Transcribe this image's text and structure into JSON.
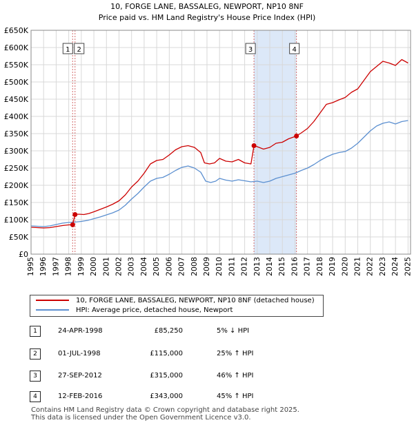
{
  "title_line1": "10, FORGE LANE, BASSALEG, NEWPORT, NP10 8NF",
  "title_line2": "Price paid vs. HM Land Registry's House Price Index (HPI)",
  "chart_data": {
    "type": "line",
    "y_ticks": [
      0,
      50000,
      100000,
      150000,
      200000,
      250000,
      300000,
      350000,
      400000,
      450000,
      500000,
      550000,
      600000,
      650000
    ],
    "y_tick_labels": [
      "£0",
      "£50K",
      "£100K",
      "£150K",
      "£200K",
      "£250K",
      "£300K",
      "£350K",
      "£400K",
      "£450K",
      "£500K",
      "£550K",
      "£600K",
      "£650K"
    ],
    "x_ticks": [
      "1995",
      "1996",
      "1997",
      "1998",
      "1999",
      "2000",
      "2001",
      "2002",
      "2003",
      "2004",
      "2005",
      "2006",
      "2007",
      "2008",
      "2009",
      "2010",
      "2011",
      "2012",
      "2013",
      "2014",
      "2015",
      "2016",
      "2017",
      "2018",
      "2019",
      "2020",
      "2021",
      "2022",
      "2023",
      "2024",
      "2025"
    ],
    "xlim": [
      1995,
      2025.2
    ],
    "ylim": [
      0,
      650000
    ],
    "colors": {
      "property": "#cc0000",
      "hpi": "#5b8fd0",
      "shade": "#dce8f8",
      "vline": "#d36b6b"
    },
    "series": [
      {
        "name": "10, FORGE LANE, BASSALEG, NEWPORT, NP10 8NF (detached house)",
        "points": [
          [
            1995.0,
            78000
          ],
          [
            1995.5,
            77000
          ],
          [
            1996.0,
            76000
          ],
          [
            1996.5,
            77000
          ],
          [
            1997.0,
            80000
          ],
          [
            1997.5,
            83000
          ],
          [
            1998.0,
            85000
          ],
          [
            1998.31,
            85250
          ],
          [
            1998.5,
            115000
          ],
          [
            1998.8,
            116000
          ],
          [
            1999.2,
            115000
          ],
          [
            1999.6,
            118000
          ],
          [
            2000.0,
            123000
          ],
          [
            2000.5,
            130000
          ],
          [
            2001.0,
            137000
          ],
          [
            2001.5,
            145000
          ],
          [
            2002.0,
            155000
          ],
          [
            2002.5,
            172000
          ],
          [
            2003.0,
            195000
          ],
          [
            2003.5,
            212000
          ],
          [
            2004.0,
            235000
          ],
          [
            2004.5,
            262000
          ],
          [
            2005.0,
            272000
          ],
          [
            2005.5,
            275000
          ],
          [
            2006.0,
            288000
          ],
          [
            2006.5,
            303000
          ],
          [
            2007.0,
            312000
          ],
          [
            2007.5,
            315000
          ],
          [
            2008.0,
            310000
          ],
          [
            2008.5,
            295000
          ],
          [
            2008.8,
            265000
          ],
          [
            2009.2,
            262000
          ],
          [
            2009.6,
            265000
          ],
          [
            2010.0,
            278000
          ],
          [
            2010.5,
            270000
          ],
          [
            2011.0,
            268000
          ],
          [
            2011.5,
            275000
          ],
          [
            2012.0,
            265000
          ],
          [
            2012.5,
            262000
          ],
          [
            2012.74,
            315000
          ],
          [
            2013.0,
            312000
          ],
          [
            2013.5,
            305000
          ],
          [
            2014.0,
            310000
          ],
          [
            2014.5,
            322000
          ],
          [
            2015.0,
            325000
          ],
          [
            2015.5,
            335000
          ],
          [
            2016.12,
            343000
          ],
          [
            2016.5,
            352000
          ],
          [
            2017.0,
            365000
          ],
          [
            2017.5,
            385000
          ],
          [
            2018.0,
            410000
          ],
          [
            2018.5,
            435000
          ],
          [
            2019.0,
            440000
          ],
          [
            2019.5,
            448000
          ],
          [
            2020.0,
            455000
          ],
          [
            2020.5,
            470000
          ],
          [
            2021.0,
            480000
          ],
          [
            2021.5,
            505000
          ],
          [
            2022.0,
            530000
          ],
          [
            2022.5,
            545000
          ],
          [
            2023.0,
            560000
          ],
          [
            2023.5,
            555000
          ],
          [
            2024.0,
            548000
          ],
          [
            2024.5,
            565000
          ],
          [
            2025.0,
            555000
          ]
        ]
      },
      {
        "name": "HPI: Average price, detached house, Newport",
        "points": [
          [
            1995.0,
            82000
          ],
          [
            1995.5,
            81000
          ],
          [
            1996.0,
            80000
          ],
          [
            1996.5,
            82000
          ],
          [
            1997.0,
            86000
          ],
          [
            1997.5,
            90000
          ],
          [
            1998.0,
            92000
          ],
          [
            1998.5,
            93000
          ],
          [
            1999.0,
            95000
          ],
          [
            1999.5,
            98000
          ],
          [
            2000.0,
            103000
          ],
          [
            2000.5,
            108000
          ],
          [
            2001.0,
            114000
          ],
          [
            2001.5,
            120000
          ],
          [
            2002.0,
            128000
          ],
          [
            2002.5,
            142000
          ],
          [
            2003.0,
            160000
          ],
          [
            2003.5,
            176000
          ],
          [
            2004.0,
            195000
          ],
          [
            2004.5,
            212000
          ],
          [
            2005.0,
            220000
          ],
          [
            2005.5,
            223000
          ],
          [
            2006.0,
            232000
          ],
          [
            2006.5,
            243000
          ],
          [
            2007.0,
            252000
          ],
          [
            2007.5,
            256000
          ],
          [
            2008.0,
            250000
          ],
          [
            2008.5,
            238000
          ],
          [
            2008.9,
            212000
          ],
          [
            2009.3,
            208000
          ],
          [
            2009.7,
            212000
          ],
          [
            2010.0,
            220000
          ],
          [
            2010.5,
            215000
          ],
          [
            2011.0,
            212000
          ],
          [
            2011.5,
            216000
          ],
          [
            2012.0,
            213000
          ],
          [
            2012.5,
            210000
          ],
          [
            2013.0,
            212000
          ],
          [
            2013.5,
            208000
          ],
          [
            2014.0,
            212000
          ],
          [
            2014.5,
            220000
          ],
          [
            2015.0,
            225000
          ],
          [
            2015.5,
            230000
          ],
          [
            2016.0,
            235000
          ],
          [
            2016.5,
            243000
          ],
          [
            2017.0,
            250000
          ],
          [
            2017.5,
            260000
          ],
          [
            2018.0,
            272000
          ],
          [
            2018.5,
            282000
          ],
          [
            2019.0,
            290000
          ],
          [
            2019.5,
            295000
          ],
          [
            2020.0,
            298000
          ],
          [
            2020.5,
            308000
          ],
          [
            2021.0,
            322000
          ],
          [
            2021.5,
            340000
          ],
          [
            2022.0,
            358000
          ],
          [
            2022.5,
            372000
          ],
          [
            2023.0,
            380000
          ],
          [
            2023.5,
            384000
          ],
          [
            2024.0,
            378000
          ],
          [
            2024.5,
            385000
          ],
          [
            2025.0,
            388000
          ]
        ]
      }
    ],
    "shaded_span": [
      2012.74,
      2016.12
    ],
    "transactions": [
      {
        "label": "1",
        "x": 1998.31,
        "y": 85250
      },
      {
        "label": "2",
        "x": 1998.5,
        "y": 115000
      },
      {
        "label": "3",
        "x": 2012.74,
        "y": 315000
      },
      {
        "label": "4",
        "x": 2016.12,
        "y": 343000
      }
    ],
    "grid": true
  },
  "legend": {
    "property_label": "10, FORGE LANE, BASSALEG, NEWPORT, NP10 8NF (detached house)",
    "hpi_label": "HPI: Average price, detached house, Newport"
  },
  "sales": [
    {
      "num": "1",
      "date": "24-APR-1998",
      "price": "£85,250",
      "hpi": "5% ↓ HPI"
    },
    {
      "num": "2",
      "date": "01-JUL-1998",
      "price": "£115,000",
      "hpi": "25% ↑ HPI"
    },
    {
      "num": "3",
      "date": "27-SEP-2012",
      "price": "£315,000",
      "hpi": "46% ↑ HPI"
    },
    {
      "num": "4",
      "date": "12-FEB-2016",
      "price": "£343,000",
      "hpi": "45% ↑ HPI"
    }
  ],
  "footer": {
    "line1": "Contains HM Land Registry data © Crown copyright and database right 2025.",
    "line2": "This data is licensed under the Open Government Licence v3.0."
  }
}
